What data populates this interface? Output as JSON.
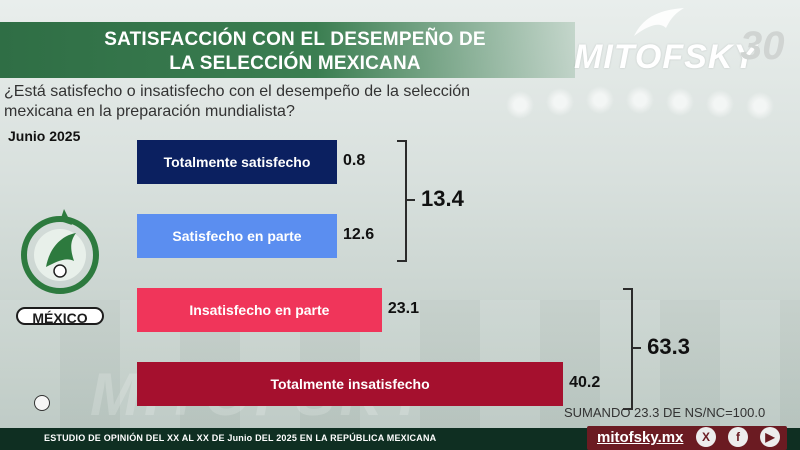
{
  "header": {
    "title_line1": "SATISFACCIÓN CON EL DESEMPEÑO DE",
    "title_line2": "LA SELECCIÓN MEXICANA",
    "logo_text": "MITOFSKY",
    "logo_number": "30"
  },
  "question": "¿Está satisfecho o insatisfecho con el desempeño de la selección mexicana en la preparación mundialista?",
  "date": "Junio 2025",
  "emblem_label": "MÉXICO",
  "chart_data": {
    "type": "bar",
    "orientation": "horizontal",
    "categories": [
      "Totalmente satisfecho",
      "Satisfecho en parte",
      "Insatisfecho en parte",
      "Totalmente insatisfecho"
    ],
    "values": [
      0.8,
      12.6,
      23.1,
      40.2
    ],
    "value_labels": [
      "0.8",
      "12.6",
      "23.1",
      "40.2"
    ],
    "colors": [
      "#0b2060",
      "#5b8ef0",
      "#f0355a",
      "#a5102e"
    ],
    "groups": [
      {
        "total": "13.4",
        "members": [
          0,
          1
        ]
      },
      {
        "total": "63.3",
        "members": [
          2,
          3
        ]
      }
    ]
  },
  "footnote": "SUMANDO 23.3 DE NS/NC=100.0",
  "footer_text": "ESTUDIO DE OPINIÓN DEL XX AL XX DE Junio DEL 2025 EN LA REPÚBLICA MEXICANA",
  "site": "mitofsky.mx",
  "icons": {
    "x": "X",
    "facebook": "f",
    "youtube": "▶"
  }
}
